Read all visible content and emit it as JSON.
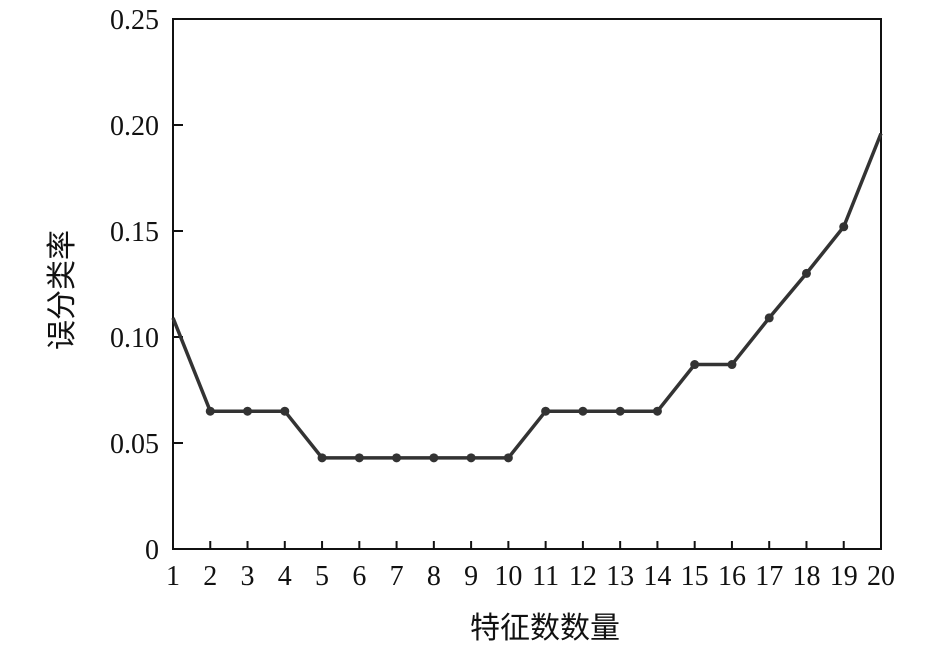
{
  "chart_data": {
    "type": "line",
    "title": "",
    "xlabel": "特征数数量",
    "ylabel": "误分类率",
    "x": [
      1,
      2,
      3,
      4,
      5,
      6,
      7,
      8,
      9,
      10,
      11,
      12,
      13,
      14,
      15,
      16,
      17,
      18,
      19,
      20
    ],
    "series": [
      {
        "values": [
          0.109,
          0.065,
          0.065,
          0.065,
          0.043,
          0.043,
          0.043,
          0.043,
          0.043,
          0.043,
          0.065,
          0.065,
          0.065,
          0.065,
          0.087,
          0.087,
          0.109,
          0.13,
          0.152,
          0.196
        ]
      }
    ],
    "xlim": [
      1,
      20
    ],
    "ylim": [
      0,
      0.25
    ],
    "xticks": [
      "1",
      "2",
      "3",
      "4",
      "5",
      "6",
      "7",
      "8",
      "9",
      "10",
      "11",
      "12",
      "13",
      "14",
      "15",
      "16",
      "17",
      "18",
      "19",
      "20"
    ],
    "yticks": [
      {
        "value": 0,
        "label": "0"
      },
      {
        "value": 0.05,
        "label": "0.05"
      },
      {
        "value": 0.1,
        "label": "0.10"
      },
      {
        "value": 0.15,
        "label": "0.15"
      },
      {
        "value": 0.2,
        "label": "0.20"
      },
      {
        "value": 0.25,
        "label": "0.25"
      }
    ],
    "grid": false,
    "line_color": "#333333",
    "marker": "circle"
  }
}
